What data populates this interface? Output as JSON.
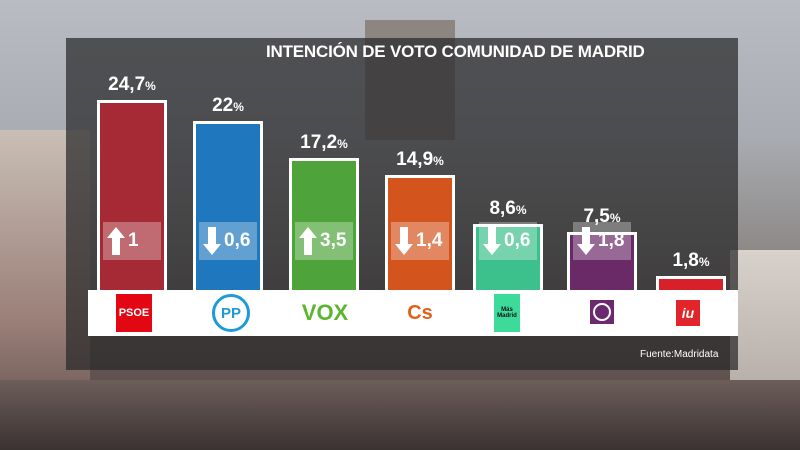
{
  "chart_data": {
    "type": "bar",
    "title": "INTENCIÓN DE VOTO COMUNIDAD DE MADRID",
    "categories": [
      "PSOE",
      "PP",
      "VOX",
      "Cs",
      "Más Madrid",
      "Podemos",
      "IU"
    ],
    "values": [
      24.7,
      22,
      17.2,
      14.9,
      8.6,
      7.5,
      1.8
    ],
    "labels": [
      "24,7",
      "22",
      "17,2",
      "14,9",
      "8,6",
      "7,5",
      "1,8"
    ],
    "unit": "%",
    "changes": [
      {
        "dir": "up",
        "label": "1"
      },
      {
        "dir": "down",
        "label": "0,6"
      },
      {
        "dir": "up",
        "label": "3,5"
      },
      {
        "dir": "down",
        "label": "1,4"
      },
      {
        "dir": "down",
        "label": "0,6"
      },
      {
        "dir": "down",
        "label": "1,8"
      },
      null
    ],
    "colors": [
      "#a52a35",
      "#1f78be",
      "#4ea43a",
      "#d4541e",
      "#3cc08c",
      "#6a2a68",
      "#d8202a"
    ],
    "ylim": [
      0,
      25
    ],
    "legend": "none",
    "grid": false
  },
  "logos": {
    "psoe": "PSOE",
    "pp": "PP",
    "vox": "VOX",
    "cs": "Cs",
    "mm": "Más Madrid",
    "iu": "iu"
  },
  "source": "Fuente:Madridata"
}
